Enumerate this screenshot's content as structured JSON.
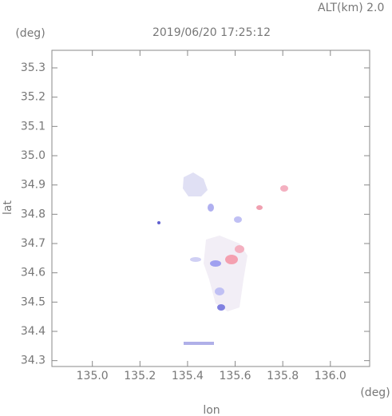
{
  "chart_data": {
    "type": "map",
    "title": "2019/06/20 17:25:12",
    "subtitle": "ALT(km) 2.0",
    "x_label": "lon",
    "y_label": "lat",
    "x_unit": "(deg)",
    "y_unit": "(deg)",
    "xlim": [
      134.83,
      136.165
    ],
    "xticks": [
      {
        "value": 135,
        "label": "135.0"
      },
      135.2,
      135.4,
      135.6,
      135.8,
      {
        "value": 136,
        "label": "136.0"
      }
    ],
    "ylim": [
      34.28,
      35.36
    ],
    "yticks": [
      34.3,
      34.4,
      34.5,
      34.6,
      34.7,
      34.8,
      34.9,
      {
        "value": 35,
        "label": "35.0"
      },
      35.1,
      35.2,
      35.3
    ],
    "grid": false
  }
}
